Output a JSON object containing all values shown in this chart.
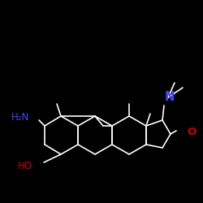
{
  "bg_color": "#000000",
  "bond_color": "#ffffff",
  "N_color": "#4444ff",
  "O_color": "#cc0000",
  "bond_lw": 1.2,
  "font_size": 8.5,
  "figsize": [
    2.5,
    2.5
  ],
  "dpi": 100,
  "label_N": "N",
  "label_O": "O",
  "label_NH2": "H₂N",
  "label_HO": "HO"
}
